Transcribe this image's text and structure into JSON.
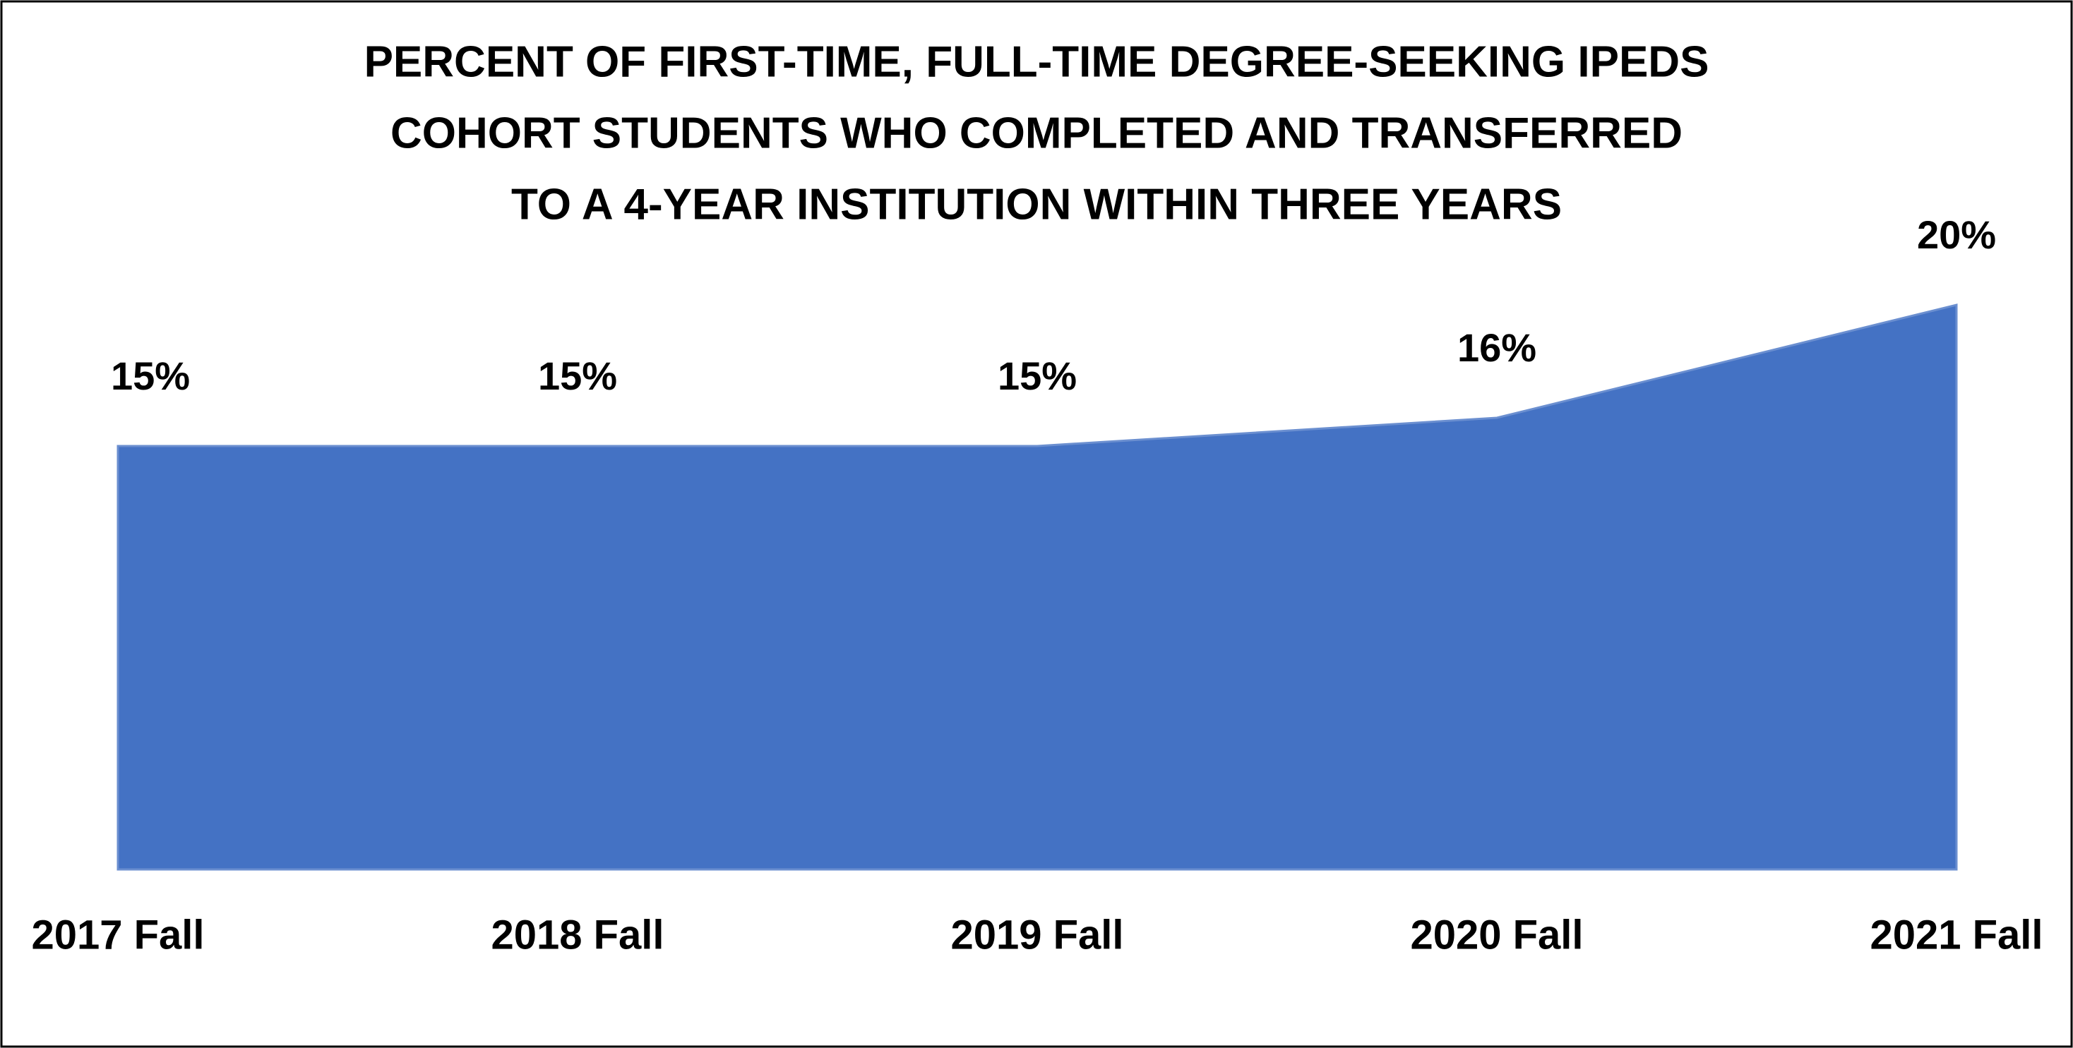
{
  "chart_data": {
    "type": "area",
    "title": [
      "PERCENT OF FIRST-TIME, FULL-TIME DEGREE-SEEKING IPEDS",
      "COHORT STUDENTS WHO COMPLETED AND TRANSFERRED",
      "TO A 4-YEAR INSTITUTION WITHIN THREE YEARS"
    ],
    "categories": [
      "2017 Fall",
      "2018 Fall",
      "2019 Fall",
      "2020 Fall",
      "2021 Fall"
    ],
    "values": [
      15,
      15,
      15,
      16,
      20
    ],
    "value_labels": [
      "15%",
      "15%",
      "15%",
      "16%",
      "20%"
    ],
    "color": "#4472c4",
    "ylim": [
      0,
      20
    ]
  }
}
